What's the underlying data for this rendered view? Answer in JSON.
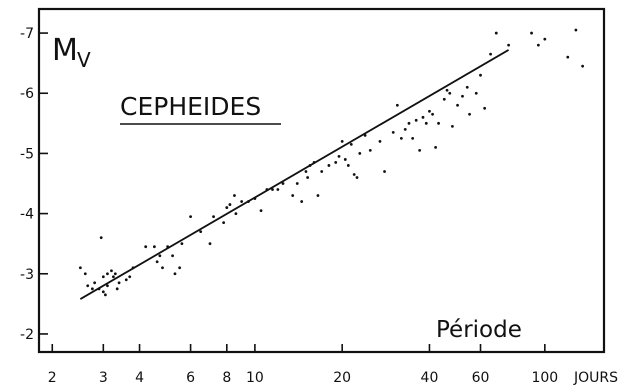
{
  "chart_data": {
    "type": "scatter",
    "title": "CEPHEIDES",
    "ylabel_main": "M",
    "ylabel_sub": "V",
    "xlabel": "Période",
    "x_unit": "JOURS",
    "x_scale": "log",
    "y_inverted": true,
    "xlim": [
      1.8,
      160
    ],
    "ylim": [
      -1.7,
      -7.4
    ],
    "x_ticks": [
      2,
      3,
      4,
      6,
      8,
      10,
      20,
      40,
      60,
      100
    ],
    "x_tick_labels": [
      "2",
      "3",
      "4",
      "6",
      "8",
      "10",
      "20",
      "40",
      "60",
      "100"
    ],
    "y_ticks": [
      -2,
      -3,
      -4,
      -5,
      -6,
      -7
    ],
    "y_tick_labels": [
      "-2",
      "-3",
      "-4",
      "-5",
      "-6",
      "-7"
    ],
    "fit_line": {
      "x": [
        2.5,
        75
      ],
      "y": [
        -2.58,
        -6.72
      ]
    },
    "points": [
      [
        2.5,
        -3.1
      ],
      [
        2.6,
        -3.0
      ],
      [
        2.65,
        -2.8
      ],
      [
        2.75,
        -2.75
      ],
      [
        2.8,
        -2.85
      ],
      [
        2.9,
        -2.75
      ],
      [
        2.95,
        -3.6
      ],
      [
        3.0,
        -2.7
      ],
      [
        3.05,
        -2.65
      ],
      [
        3.1,
        -2.8
      ],
      [
        3.0,
        -2.95
      ],
      [
        3.1,
        -3.0
      ],
      [
        3.2,
        -3.05
      ],
      [
        3.25,
        -2.95
      ],
      [
        3.3,
        -3.0
      ],
      [
        3.4,
        -2.85
      ],
      [
        3.35,
        -2.75
      ],
      [
        3.6,
        -2.9
      ],
      [
        3.7,
        -2.95
      ],
      [
        3.8,
        -3.1
      ],
      [
        4.2,
        -3.45
      ],
      [
        4.5,
        -3.45
      ],
      [
        4.6,
        -3.2
      ],
      [
        4.7,
        -3.3
      ],
      [
        4.8,
        -3.1
      ],
      [
        5.0,
        -3.45
      ],
      [
        5.2,
        -3.3
      ],
      [
        5.3,
        -3.0
      ],
      [
        5.5,
        -3.1
      ],
      [
        5.6,
        -3.5
      ],
      [
        6.0,
        -3.95
      ],
      [
        6.5,
        -3.7
      ],
      [
        7.0,
        -3.5
      ],
      [
        7.2,
        -3.95
      ],
      [
        7.8,
        -3.85
      ],
      [
        8.0,
        -4.1
      ],
      [
        8.2,
        -4.15
      ],
      [
        8.5,
        -4.3
      ],
      [
        8.6,
        -4.0
      ],
      [
        9.0,
        -4.2
      ],
      [
        9.5,
        -4.2
      ],
      [
        10.0,
        -4.25
      ],
      [
        10.5,
        -4.05
      ],
      [
        11.0,
        -4.4
      ],
      [
        11.5,
        -4.4
      ],
      [
        12.0,
        -4.4
      ],
      [
        12.5,
        -4.5
      ],
      [
        13.5,
        -4.3
      ],
      [
        14.0,
        -4.5
      ],
      [
        14.5,
        -4.2
      ],
      [
        15.0,
        -4.7
      ],
      [
        15.5,
        -4.8
      ],
      [
        15.2,
        -4.6
      ],
      [
        16.0,
        -4.85
      ],
      [
        16.5,
        -4.3
      ],
      [
        17.0,
        -4.7
      ],
      [
        18.0,
        -4.8
      ],
      [
        19.0,
        -4.85
      ],
      [
        19.5,
        -4.95
      ],
      [
        20.0,
        -5.2
      ],
      [
        20.5,
        -4.9
      ],
      [
        21.0,
        -4.8
      ],
      [
        21.5,
        -5.15
      ],
      [
        22.0,
        -4.65
      ],
      [
        22.5,
        -4.6
      ],
      [
        23.0,
        -5.0
      ],
      [
        24.0,
        -5.3
      ],
      [
        25.0,
        -5.05
      ],
      [
        27.0,
        -5.2
      ],
      [
        28.0,
        -4.7
      ],
      [
        30.0,
        -5.35
      ],
      [
        31.0,
        -5.8
      ],
      [
        32.0,
        -5.25
      ],
      [
        33.0,
        -5.4
      ],
      [
        34.0,
        -5.5
      ],
      [
        35.0,
        -5.25
      ],
      [
        36.0,
        -5.55
      ],
      [
        37.0,
        -5.05
      ],
      [
        38.0,
        -5.6
      ],
      [
        39.0,
        -5.5
      ],
      [
        40.0,
        -5.7
      ],
      [
        41.0,
        -5.65
      ],
      [
        42.0,
        -5.1
      ],
      [
        43.0,
        -5.5
      ],
      [
        45.0,
        -5.9
      ],
      [
        46.0,
        -6.05
      ],
      [
        47.0,
        -6.0
      ],
      [
        48.0,
        -5.45
      ],
      [
        50.0,
        -5.8
      ],
      [
        52.0,
        -5.95
      ],
      [
        54.0,
        -6.1
      ],
      [
        55.0,
        -5.65
      ],
      [
        58.0,
        -6.0
      ],
      [
        60.0,
        -6.3
      ],
      [
        62.0,
        -5.75
      ],
      [
        65.0,
        -6.65
      ],
      [
        68.0,
        -7.0
      ],
      [
        75.0,
        -6.8
      ],
      [
        90.0,
        -7.0
      ],
      [
        95.0,
        -6.8
      ],
      [
        100.0,
        -6.9
      ],
      [
        120.0,
        -6.6
      ],
      [
        128.0,
        -7.05
      ],
      [
        135.0,
        -6.45
      ]
    ]
  }
}
